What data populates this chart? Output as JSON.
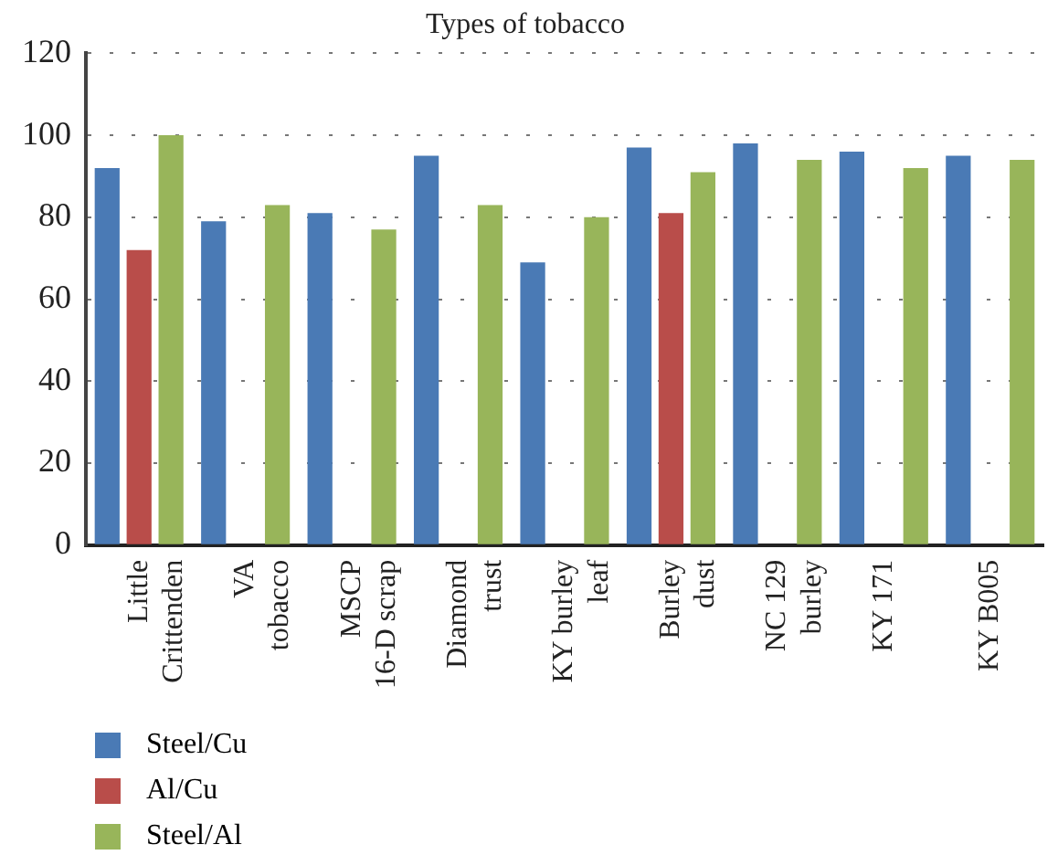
{
  "chart_data": {
    "type": "bar",
    "title": "Types of tobacco",
    "categories": [
      "Little\nCrittenden",
      "VA\ntobacco",
      "MSCP\n16-D scrap",
      "Diamond\ntrust",
      "KY burley\nleaf",
      "Burley\ndust",
      "NC 129\nburley",
      "KY 171",
      "KY B005"
    ],
    "series": [
      {
        "name": "Steel/Cu",
        "color": "#4a7ab5",
        "values": [
          92,
          79,
          81,
          95,
          69,
          97,
          98,
          96,
          95
        ]
      },
      {
        "name": "Al/Cu",
        "color": "#b94d4a",
        "values": [
          72,
          null,
          null,
          null,
          null,
          81,
          null,
          null,
          null
        ]
      },
      {
        "name": "Steel/Al",
        "color": "#98b55a",
        "values": [
          100,
          83,
          77,
          83,
          80,
          91,
          94,
          92,
          94
        ]
      }
    ],
    "ylim": [
      0,
      120
    ],
    "yticks": [
      0,
      20,
      40,
      60,
      80,
      100,
      120
    ],
    "grid": "y",
    "legend": "bottom left"
  }
}
